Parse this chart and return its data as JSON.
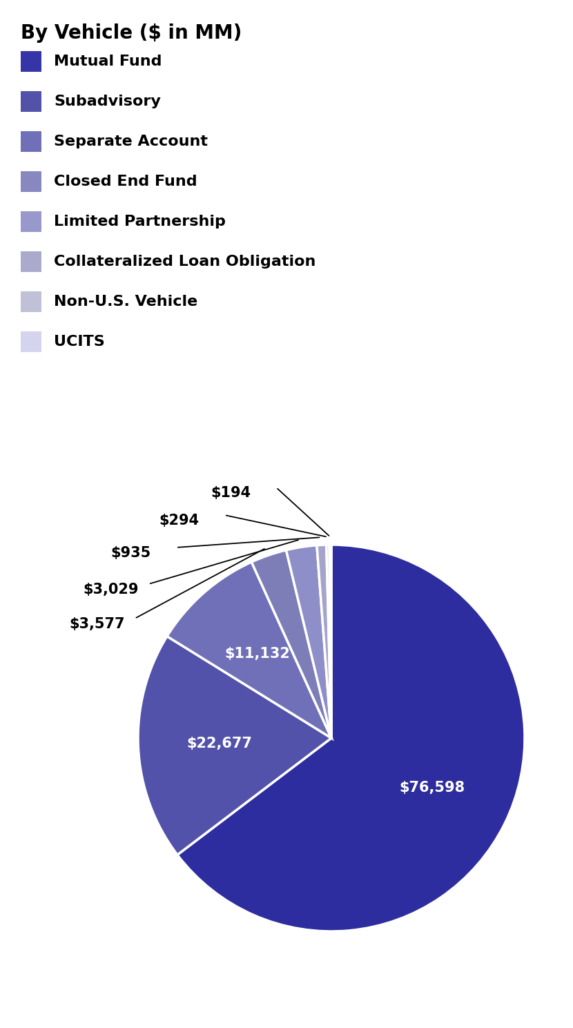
{
  "title": "By Vehicle ($ in MM)",
  "labels": [
    "Mutual Fund",
    "Subadvisory",
    "Separate Account",
    "Closed End Fund",
    "Limited Partnership",
    "Collateralized Loan Obligation",
    "Non-U.S. Vehicle",
    "UCITS"
  ],
  "values": [
    76598,
    22677,
    11132,
    3577,
    3029,
    935,
    294,
    194
  ],
  "pie_colors": [
    "#2d2d9f",
    "#5252aa",
    "#7070b8",
    "#7d7db8",
    "#8e8ec8",
    "#a5a5cc",
    "#bebedd",
    "#d4d4ee"
  ],
  "legend_colors": [
    "#3535a8",
    "#5252a8",
    "#7070b8",
    "#8888c0",
    "#9898cc",
    "#aaaacc",
    "#c0c0d8",
    "#d4d4ee"
  ],
  "label_fontsize": 16,
  "title_fontsize": 20,
  "inside_labels": [
    "$76,598",
    "$22,677",
    "$11,132"
  ],
  "outside_labels": [
    "$3,577",
    "$3,029",
    "$935",
    "$294",
    "$194"
  ]
}
